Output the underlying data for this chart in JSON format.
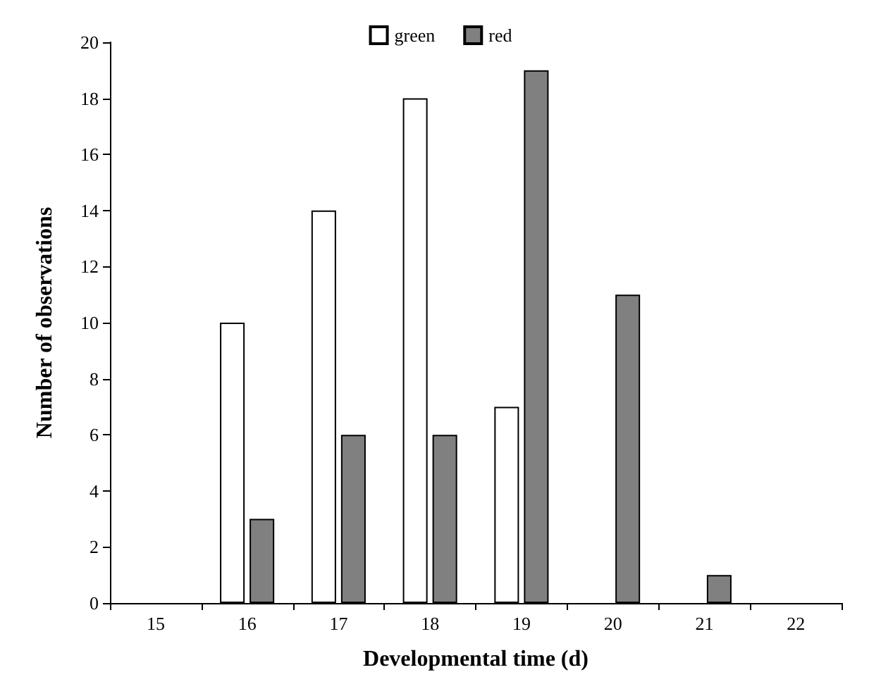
{
  "chart_data": {
    "type": "bar",
    "xlabel": "Developmental time (d)",
    "ylabel": "Number of observations",
    "categories": [
      "15",
      "16",
      "17",
      "18",
      "19",
      "20",
      "21",
      "22"
    ],
    "series": [
      {
        "name": "green",
        "color": "#ffffff",
        "values": [
          0,
          10,
          14,
          18,
          7,
          0,
          0,
          0
        ]
      },
      {
        "name": "red",
        "color": "#808080",
        "values": [
          0,
          3,
          6,
          6,
          19,
          11,
          1,
          0
        ]
      }
    ],
    "ylim": [
      0,
      20
    ],
    "yticks": [
      0,
      2,
      4,
      6,
      8,
      10,
      12,
      14,
      16,
      18,
      20
    ],
    "grid": false,
    "legend": "top"
  }
}
